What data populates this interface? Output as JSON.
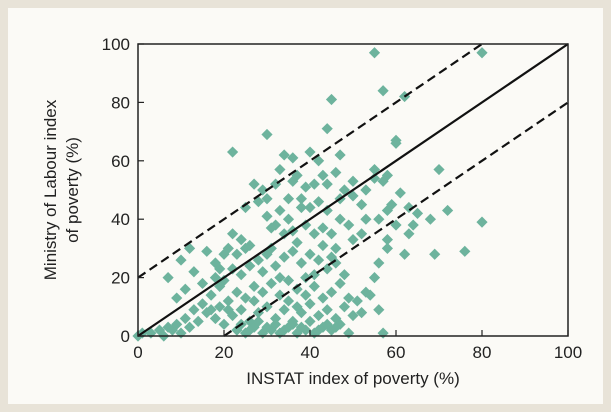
{
  "chart_data": {
    "type": "scatter",
    "xlabel": "INSTAT index of poverty (%)",
    "ylabel_lines": [
      "Ministry of Labour index",
      "of poverty (%)"
    ],
    "xlim": [
      0,
      100
    ],
    "ylim": [
      0,
      100
    ],
    "xticks": [
      "0",
      "20",
      "40",
      "60",
      "80",
      "100"
    ],
    "yticks": [
      "0",
      "20",
      "40",
      "60",
      "80",
      "100"
    ],
    "grid": false,
    "marker": "diamond",
    "colors": {
      "points": "#6db39d",
      "lines": "#111111",
      "frame": "#222222"
    },
    "reference_lines": [
      {
        "style": "solid",
        "intercept": 0,
        "slope": 1
      },
      {
        "style": "dashed",
        "intercept": 20,
        "slope": 1
      },
      {
        "style": "dashed",
        "intercept": -20,
        "slope": 1
      }
    ],
    "points": [
      [
        55,
        97
      ],
      [
        80,
        97
      ],
      [
        57,
        84
      ],
      [
        62,
        82
      ],
      [
        45,
        81
      ],
      [
        60,
        67
      ],
      [
        30,
        69
      ],
      [
        44,
        71
      ],
      [
        47,
        62
      ],
      [
        60,
        66
      ],
      [
        22,
        63
      ],
      [
        36,
        61
      ],
      [
        40,
        63
      ],
      [
        33,
        57
      ],
      [
        37,
        55
      ],
      [
        43,
        55
      ],
      [
        42,
        60
      ],
      [
        55,
        57
      ],
      [
        58,
        55
      ],
      [
        70,
        57
      ],
      [
        48,
        50
      ],
      [
        53,
        50
      ],
      [
        55,
        54
      ],
      [
        57,
        53
      ],
      [
        47,
        47
      ],
      [
        50,
        48
      ],
      [
        52,
        45
      ],
      [
        59,
        45
      ],
      [
        61,
        49
      ],
      [
        63,
        44
      ],
      [
        65,
        42
      ],
      [
        68,
        40
      ],
      [
        72,
        43
      ],
      [
        80,
        39
      ],
      [
        60,
        38
      ],
      [
        63,
        35
      ],
      [
        58,
        33
      ],
      [
        62,
        28
      ],
      [
        69,
        28
      ],
      [
        76,
        29
      ],
      [
        56,
        25
      ],
      [
        58,
        30
      ],
      [
        55,
        20
      ],
      [
        54,
        14
      ],
      [
        56,
        9
      ],
      [
        57,
        1
      ],
      [
        25,
        44
      ],
      [
        28,
        46
      ],
      [
        30,
        47
      ],
      [
        33,
        43
      ],
      [
        35,
        47
      ],
      [
        38,
        44
      ],
      [
        40,
        44
      ],
      [
        42,
        46
      ],
      [
        44,
        43
      ],
      [
        30,
        41
      ],
      [
        31,
        37
      ],
      [
        32,
        38
      ],
      [
        34,
        35
      ],
      [
        36,
        36
      ],
      [
        39,
        38
      ],
      [
        41,
        35
      ],
      [
        43,
        37
      ],
      [
        45,
        35
      ],
      [
        47,
        40
      ],
      [
        49,
        38
      ],
      [
        50,
        33
      ],
      [
        52,
        35
      ],
      [
        53,
        40
      ],
      [
        46,
        30
      ],
      [
        22,
        35
      ],
      [
        24,
        33
      ],
      [
        25,
        30
      ],
      [
        26,
        31
      ],
      [
        23,
        28
      ],
      [
        21,
        30
      ],
      [
        20,
        28
      ],
      [
        18,
        25
      ],
      [
        19,
        23
      ],
      [
        16,
        29
      ],
      [
        12,
        30
      ],
      [
        10,
        26
      ],
      [
        13,
        22
      ],
      [
        15,
        18
      ],
      [
        18,
        20
      ],
      [
        20,
        19
      ],
      [
        22,
        23
      ],
      [
        24,
        21
      ],
      [
        26,
        24
      ],
      [
        28,
        26
      ],
      [
        30,
        28
      ],
      [
        32,
        24
      ],
      [
        34,
        27
      ],
      [
        36,
        29
      ],
      [
        38,
        25
      ],
      [
        40,
        28
      ],
      [
        42,
        26
      ],
      [
        44,
        23
      ],
      [
        46,
        25
      ],
      [
        48,
        21
      ],
      [
        27,
        17
      ],
      [
        29,
        15
      ],
      [
        31,
        18
      ],
      [
        33,
        14
      ],
      [
        35,
        19
      ],
      [
        37,
        16
      ],
      [
        39,
        20
      ],
      [
        41,
        17
      ],
      [
        43,
        13
      ],
      [
        45,
        15
      ],
      [
        47,
        18
      ],
      [
        49,
        13
      ],
      [
        51,
        12
      ],
      [
        53,
        15
      ],
      [
        25,
        13
      ],
      [
        23,
        15
      ],
      [
        21,
        12
      ],
      [
        19,
        10
      ],
      [
        17,
        14
      ],
      [
        15,
        11
      ],
      [
        13,
        9
      ],
      [
        11,
        6
      ],
      [
        9,
        4
      ],
      [
        8,
        2
      ],
      [
        10,
        1
      ],
      [
        12,
        3
      ],
      [
        14,
        5
      ],
      [
        16,
        8
      ],
      [
        18,
        6
      ],
      [
        20,
        4
      ],
      [
        22,
        7
      ],
      [
        24,
        9
      ],
      [
        26,
        5
      ],
      [
        28,
        8
      ],
      [
        30,
        10
      ],
      [
        32,
        6
      ],
      [
        34,
        9
      ],
      [
        36,
        5
      ],
      [
        38,
        8
      ],
      [
        40,
        11
      ],
      [
        42,
        7
      ],
      [
        44,
        9
      ],
      [
        46,
        6
      ],
      [
        48,
        10
      ],
      [
        50,
        7
      ],
      [
        52,
        8
      ],
      [
        23,
        2
      ],
      [
        25,
        1
      ],
      [
        27,
        3
      ],
      [
        29,
        1
      ],
      [
        31,
        2
      ],
      [
        33,
        1
      ],
      [
        35,
        3
      ],
      [
        37,
        1
      ],
      [
        39,
        2
      ],
      [
        41,
        1
      ],
      [
        43,
        3
      ],
      [
        45,
        2
      ],
      [
        47,
        4
      ],
      [
        49,
        1
      ],
      [
        24,
        4
      ],
      [
        26,
        2
      ],
      [
        28,
        5
      ],
      [
        30,
        3
      ],
      [
        32,
        4
      ],
      [
        34,
        2
      ],
      [
        36,
        4
      ],
      [
        38,
        3
      ],
      [
        40,
        5
      ],
      [
        42,
        2
      ],
      [
        44,
        4
      ],
      [
        46,
        3
      ],
      [
        0,
        0
      ],
      [
        1,
        1
      ],
      [
        3,
        1
      ],
      [
        6,
        0
      ],
      [
        7,
        3
      ],
      [
        5,
        2
      ],
      [
        39,
        51
      ],
      [
        41,
        52
      ],
      [
        27,
        52
      ],
      [
        29,
        50
      ],
      [
        35,
        40
      ],
      [
        37,
        32
      ],
      [
        43,
        31
      ],
      [
        45,
        27
      ],
      [
        31,
        30
      ],
      [
        29,
        22
      ],
      [
        33,
        20
      ],
      [
        27,
        12
      ],
      [
        35,
        12
      ],
      [
        39,
        14
      ],
      [
        11,
        16
      ],
      [
        7,
        20
      ],
      [
        9,
        13
      ],
      [
        19,
        17
      ],
      [
        17,
        9
      ],
      [
        21,
        9
      ],
      [
        37,
        10
      ],
      [
        41,
        21
      ],
      [
        56,
        40
      ],
      [
        58,
        43
      ],
      [
        64,
        38
      ],
      [
        50,
        53
      ],
      [
        44,
        52
      ],
      [
        46,
        56
      ],
      [
        34,
        62
      ],
      [
        38,
        47
      ],
      [
        36,
        53
      ],
      [
        32,
        52
      ]
    ]
  }
}
